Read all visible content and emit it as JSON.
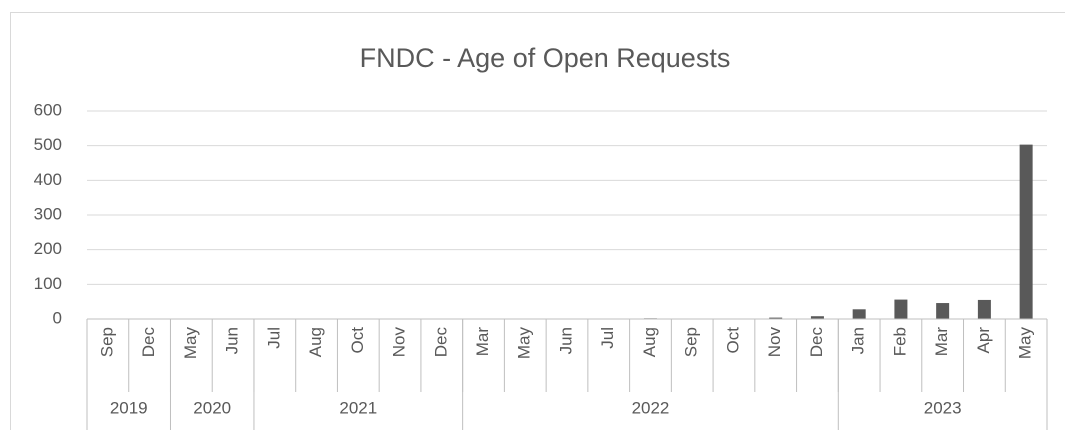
{
  "chart_data": {
    "type": "bar",
    "title": "FNDC - Age of Open Requests",
    "categories": [
      "Sep",
      "Dec",
      "May",
      "Jun",
      "Jul",
      "Aug",
      "Oct",
      "Nov",
      "Dec",
      "Mar",
      "May",
      "Jun",
      "Jul",
      "Aug",
      "Sep",
      "Oct",
      "Nov",
      "Dec",
      "Jan",
      "Feb",
      "Mar",
      "Apr",
      "May"
    ],
    "values": [
      0,
      0,
      0,
      0,
      0,
      0,
      0,
      0,
      0,
      0,
      0,
      0,
      1,
      2,
      0,
      1,
      4,
      8,
      28,
      56,
      46,
      55,
      503
    ],
    "groups": [
      {
        "label": "2019",
        "count": 2
      },
      {
        "label": "2020",
        "count": 2
      },
      {
        "label": "2021",
        "count": 5
      },
      {
        "label": "2022",
        "count": 9
      },
      {
        "label": "2023",
        "count": 5
      }
    ],
    "color": "#595959",
    "ylim": [
      0,
      600
    ],
    "yticks": [
      0,
      100,
      200,
      300,
      400,
      500,
      600
    ],
    "grid": true
  }
}
